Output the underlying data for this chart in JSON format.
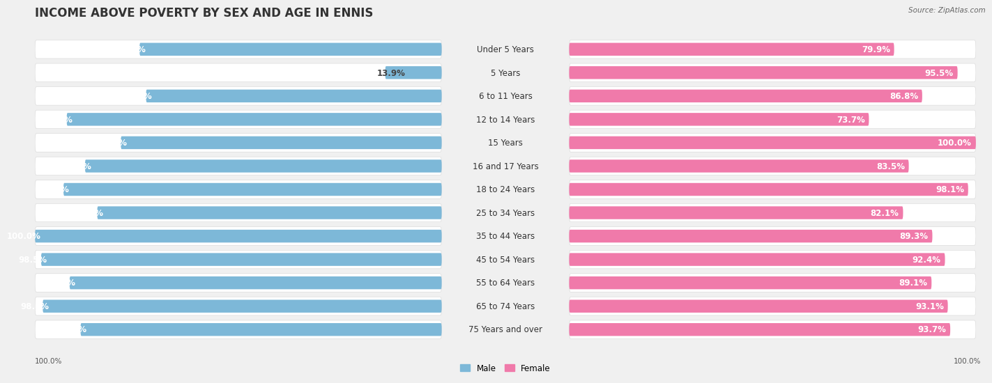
{
  "title": "INCOME ABOVE POVERTY BY SEX AND AGE IN ENNIS",
  "source": "Source: ZipAtlas.com",
  "categories": [
    "Under 5 Years",
    "5 Years",
    "6 to 11 Years",
    "12 to 14 Years",
    "15 Years",
    "16 and 17 Years",
    "18 to 24 Years",
    "25 to 34 Years",
    "35 to 44 Years",
    "45 to 54 Years",
    "55 to 64 Years",
    "65 to 74 Years",
    "75 Years and over"
  ],
  "male_values": [
    74.3,
    13.9,
    72.7,
    92.2,
    78.9,
    87.7,
    93.0,
    84.7,
    100.0,
    98.5,
    91.5,
    98.1,
    88.8
  ],
  "female_values": [
    79.9,
    95.5,
    86.8,
    73.7,
    100.0,
    83.5,
    98.1,
    82.1,
    89.3,
    92.4,
    89.1,
    93.1,
    93.7
  ],
  "male_color_strong": "#7db8d8",
  "male_color_light": "#c8dff0",
  "female_color_strong": "#f07aaa",
  "female_color_light": "#f5bcd4",
  "row_bg_color": "#ffffff",
  "bg_color": "#f0f0f0",
  "title_fontsize": 12,
  "label_fontsize": 8.5,
  "value_fontsize": 8.5,
  "max_val": 100.0,
  "legend_male": "Male",
  "legend_female": "Female"
}
